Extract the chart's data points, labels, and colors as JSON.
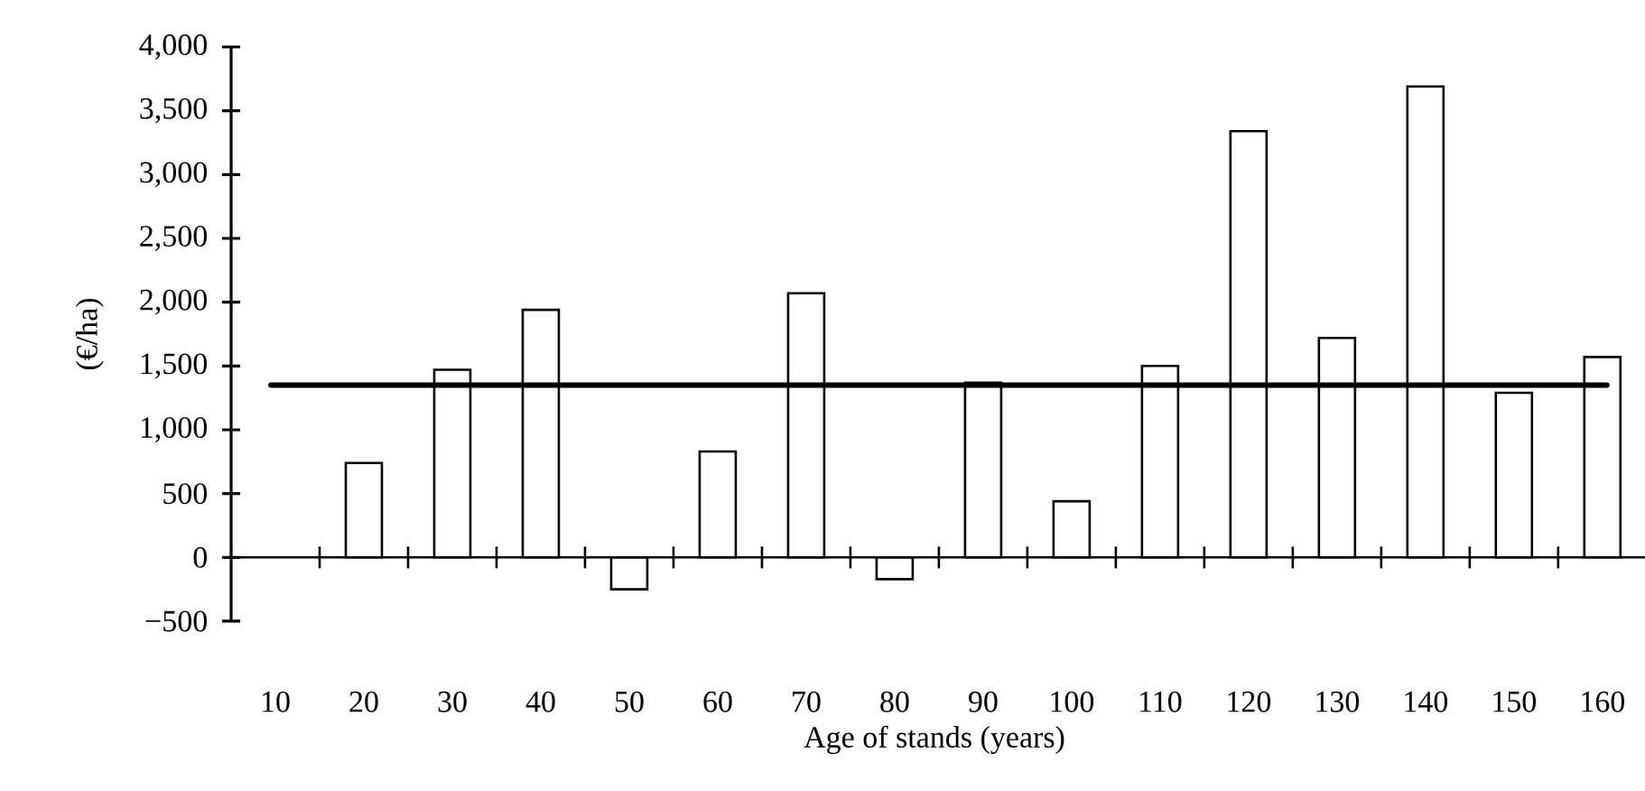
{
  "chart_data": {
    "type": "bar",
    "xlabel": "Age of stands (years)",
    "ylabel": "(€/ha)",
    "categories": [
      "10",
      "20",
      "30",
      "40",
      "50",
      "60",
      "70",
      "80",
      "90",
      "100",
      "110",
      "120",
      "130",
      "140",
      "150",
      "160"
    ],
    "values": [
      null,
      740,
      1470,
      1940,
      -250,
      830,
      2070,
      -170,
      1370,
      440,
      1500,
      3340,
      1720,
      3690,
      1290,
      1570
    ],
    "color": "#ffffff",
    "ylim": [
      -500,
      4000
    ],
    "yticks": [
      {
        "value": -500,
        "label": "−500"
      },
      0,
      500,
      {
        "value": 1000,
        "label": "1,000"
      },
      {
        "value": 1500,
        "label": "1,500"
      },
      {
        "value": 2000,
        "label": "2,000"
      },
      {
        "value": 2500,
        "label": "2,500"
      },
      {
        "value": 3000,
        "label": "3,000"
      },
      {
        "value": 3500,
        "label": "3,500"
      },
      {
        "value": 4000,
        "label": "4,000"
      }
    ],
    "ref_lines": [
      {
        "axis": "y",
        "value": 1350,
        "color": "#000000",
        "line_style": "solid"
      }
    ]
  }
}
